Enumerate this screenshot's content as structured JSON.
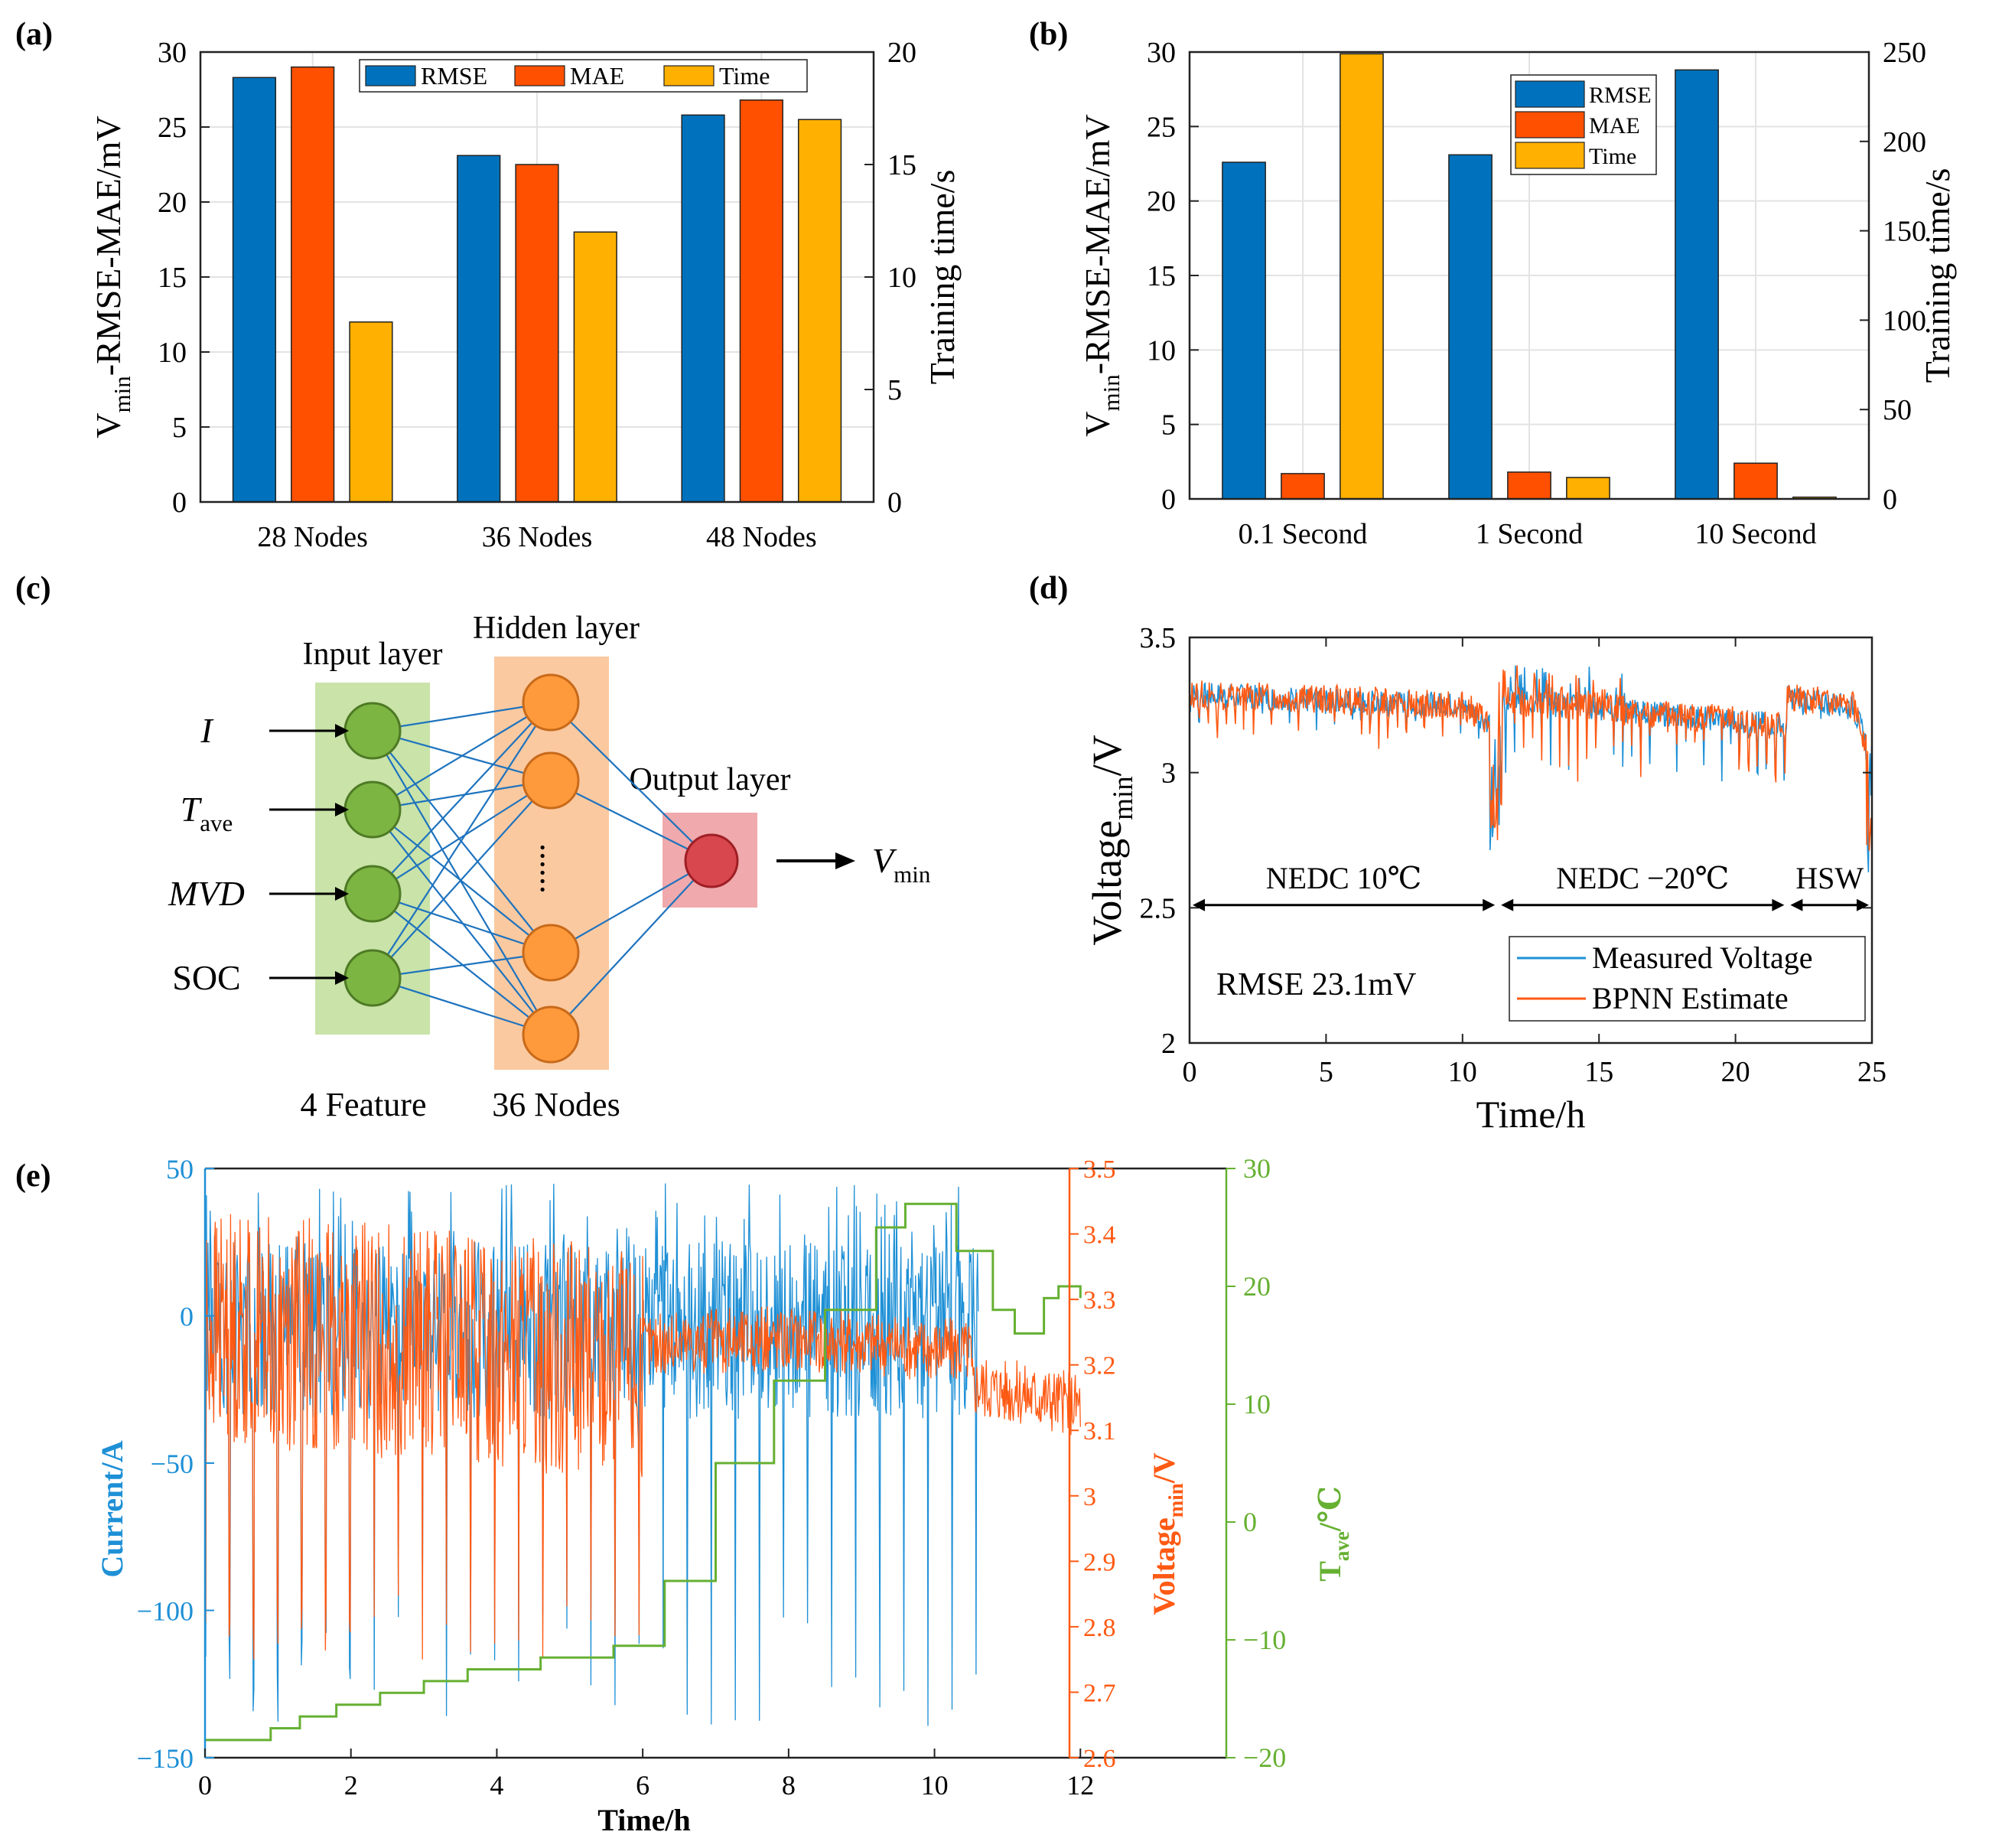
{
  "colors": {
    "blue": "#0072BD",
    "orange": "#FF5000",
    "yellow": "#FFB000",
    "line_blue": "#1E90D6",
    "line_orange": "#FF5A14",
    "green": "#66B032",
    "green_layer": "#C9E3A8",
    "orange_layer": "#FBC9A0",
    "red_layer": "#F0A9AC"
  },
  "chart_data": [
    {
      "panel": "(a)",
      "type": "bar",
      "categories": [
        "28 Nodes",
        "36 Nodes",
        "48 Nodes"
      ],
      "ylabel_main": "V",
      "ylabel_sub": "min",
      "ylabel_rest": "-RMSE-MAE/mV",
      "ylabel_right": "Training time/s",
      "ylim": [
        0,
        30
      ],
      "yticks": [
        0,
        5,
        10,
        15,
        20,
        25,
        30
      ],
      "ylim_right": [
        0,
        20
      ],
      "yticks_right": [
        0,
        5,
        10,
        15,
        20
      ],
      "series": [
        {
          "name": "RMSE",
          "axis": "left",
          "values": [
            28.3,
            23.1,
            25.8
          ]
        },
        {
          "name": "MAE",
          "axis": "left",
          "values": [
            29.0,
            22.5,
            26.8
          ]
        },
        {
          "name": "Time",
          "axis": "right",
          "values": [
            8.0,
            12.0,
            17.0
          ]
        }
      ],
      "legend": "top, horizontal",
      "grid": true
    },
    {
      "panel": "(b)",
      "type": "bar",
      "categories": [
        "0.1 Second",
        "1 Second",
        "10 Second"
      ],
      "ylabel_main": "V",
      "ylabel_sub": "min",
      "ylabel_rest": "-RMSE-MAE/mV",
      "ylabel_right": "Training time/s",
      "ylim": [
        0,
        30
      ],
      "yticks": [
        0,
        5,
        10,
        15,
        20,
        25,
        30
      ],
      "ylim_right": [
        0,
        250
      ],
      "yticks_right": [
        0,
        50,
        100,
        150,
        200,
        250
      ],
      "series": [
        {
          "name": "RMSE",
          "axis": "left",
          "values": [
            22.6,
            23.1,
            28.8
          ]
        },
        {
          "name": "MAE",
          "axis": "left",
          "values": [
            1.7,
            1.8,
            2.4
          ]
        },
        {
          "name": "Time",
          "axis": "right",
          "values": [
            249,
            12,
            1
          ]
        }
      ],
      "legend": "top-right, vertical",
      "grid": true
    },
    {
      "panel": "(d)",
      "type": "line",
      "xlabel": "Time/h",
      "ylabel_main": "Voltage",
      "ylabel_sub": "min",
      "ylabel_rest": "/V",
      "xlim": [
        0,
        25
      ],
      "xticks": [
        0,
        5,
        10,
        15,
        20,
        25
      ],
      "ylim": [
        2,
        3.5
      ],
      "yticks": [
        2,
        2.5,
        3,
        3.5
      ],
      "series": [
        {
          "name": "Measured Voltage"
        },
        {
          "name": "BPNN Estimate"
        }
      ],
      "segments": [
        {
          "label": "NEDC 10℃",
          "x": [
            0,
            11.3
          ]
        },
        {
          "label": "NEDC −20℃",
          "x": [
            11.3,
            21.9
          ]
        },
        {
          "label": "HSW",
          "x": [
            21.9,
            25
          ]
        }
      ],
      "annotation": "RMSE 23.1mV",
      "legend": "bottom-right"
    },
    {
      "panel": "(e)",
      "type": "line",
      "xlabel": "Time/h",
      "xlim": [
        0,
        14
      ],
      "xticks": [
        0,
        2,
        4,
        6,
        8,
        10,
        12
      ],
      "ylabel_left": "Current/A",
      "ylim_left": [
        -150,
        50
      ],
      "yticks_left": [
        -150,
        -100,
        -50,
        0,
        50
      ],
      "ylabel_mid_main": "Voltage",
      "ylabel_mid_sub": "min",
      "ylabel_mid_rest": "/V",
      "ylim_mid": [
        2.6,
        3.5
      ],
      "yticks_mid": [
        2.6,
        2.7,
        2.8,
        2.9,
        3,
        3.1,
        3.2,
        3.3,
        3.4,
        3.5
      ],
      "ylabel_right_main": "T",
      "ylabel_right_sub": "ave",
      "ylabel_right_rest": "/℃",
      "ylim_right": [
        -20,
        30
      ],
      "yticks_right": [
        -20,
        -10,
        0,
        10,
        20,
        30
      ],
      "temperature": {
        "x": [
          0,
          0.6,
          0.9,
          1.3,
          1.8,
          2.4,
          3.0,
          3.6,
          4.6,
          5.6,
          5.9,
          6.3,
          7.0,
          7.8,
          8.5,
          9.2,
          9.6,
          9.9,
          10.3,
          10.8,
          11.1,
          11.5,
          11.7,
          12.0
        ],
        "y": [
          -18.5,
          -18.5,
          -17.5,
          -16.5,
          -15.5,
          -14.5,
          -13.5,
          -12.5,
          -11.5,
          -10.5,
          -10.5,
          -5,
          5,
          12,
          18,
          25,
          27,
          27,
          23,
          18,
          16,
          19,
          20,
          19
        ]
      }
    }
  ],
  "diagram": {
    "panel": "(c)",
    "input_layer_label": "Input layer",
    "hidden_layer_label": "Hidden layer",
    "output_layer_label": "Output layer",
    "inputs": [
      {
        "main": "I",
        "sub": ""
      },
      {
        "main": "T",
        "sub": "ave"
      },
      {
        "main": "MVD",
        "sub": ""
      },
      {
        "main": "SOC",
        "sub": ""
      }
    ],
    "output": {
      "main": "V",
      "sub": "min"
    },
    "dots": "......",
    "feature_caption": "4 Feature",
    "nodes_caption": "36 Nodes"
  }
}
